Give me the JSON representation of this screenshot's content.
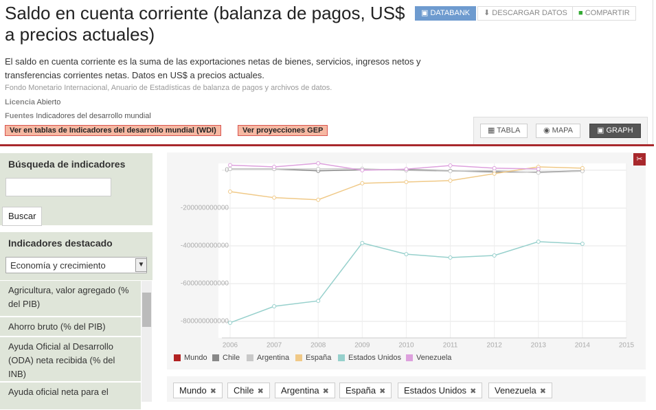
{
  "header": {
    "title": "Saldo en cuenta corriente (balanza de pagos, US$ a precios actuales)",
    "description": "El saldo en cuenta corriente es la suma de las exportaciones netas de bienes, servicios, ingresos netos y transferencias corrientes netas. Datos en US$ a precios actuales.",
    "source": "Fondo Monetario Internacional, Anuario de Estadísticas de balanza de pagos y archivos de datos.",
    "license_label": "Licencia",
    "license": "Abierto",
    "sources_label": "Fuentes",
    "sources": "Indicadores del desarrollo mundial",
    "links": [
      "Ver en tablas de Indicadores del desarrollo mundial (WDI)",
      "Ver proyecciones GEP"
    ]
  },
  "toolbar": [
    "DATABANK",
    "DESCARGAR DATOS",
    "COMPARTIR"
  ],
  "view_tabs": [
    "TABLA",
    "MAPA",
    "GRAPH"
  ],
  "sidebar": {
    "search_title": "Búsqueda de indicadores",
    "search_button": "Buscar",
    "featured_title": "Indicadores destacado",
    "select": "Economía y crecimiento",
    "items": [
      "Agricultura, valor agregado (% del PIB)",
      "Ahorro bruto (% del PIB)",
      "Ayuda Oficial al Desarrollo (ODA) neta recibida (% del INB)",
      "Ayuda oficial neta para el"
    ]
  },
  "chart_data": {
    "type": "line",
    "x": [
      2006,
      2007,
      2008,
      2009,
      2010,
      2011,
      2012,
      2013,
      2014
    ],
    "xlim": [
      2006,
      2015
    ],
    "xticks": [
      2006,
      2007,
      2008,
      2009,
      2010,
      2011,
      2012,
      2013,
      2014,
      2015
    ],
    "ylim": [
      -887000000000,
      36000000000
    ],
    "yticks": [
      0,
      -200000000000,
      -400000000000,
      -600000000000,
      -800000000000
    ],
    "grid": true,
    "series": [
      {
        "name": "Mundo",
        "color": "#b22222",
        "values": [
          null,
          null,
          null,
          null,
          null,
          null,
          null,
          null,
          null
        ]
      },
      {
        "name": "Chile",
        "color": "#888888",
        "values": [
          7000000000,
          7000000000,
          -3000000000,
          2000000000,
          4000000000,
          -3000000000,
          -9000000000,
          -10000000000,
          -3000000000
        ]
      },
      {
        "name": "Argentina",
        "color": "#c8c8c8",
        "values": [
          7000000000,
          7000000000,
          7000000000,
          8000000000,
          -1000000000,
          -5000000000,
          -2000000000,
          -13000000000,
          -5000000000
        ]
      },
      {
        "name": "España",
        "color": "#f0c987",
        "values": [
          -113000000000,
          -145000000000,
          -156000000000,
          -69000000000,
          -62000000000,
          -55000000000,
          -18000000000,
          18000000000,
          11000000000
        ]
      },
      {
        "name": "Estados Unidos",
        "color": "#96d0cc",
        "values": [
          -807000000000,
          -720000000000,
          -691000000000,
          -385000000000,
          -444000000000,
          -462000000000,
          -451000000000,
          -378000000000,
          -389000000000
        ]
      },
      {
        "name": "Venezuela",
        "color": "#dda0dd",
        "values": [
          27000000000,
          18000000000,
          37000000000,
          0,
          6000000000,
          25000000000,
          11000000000,
          7000000000,
          null
        ]
      }
    ]
  },
  "filter_tags": [
    "Mundo",
    "Chile",
    "Argentina",
    "España",
    "Estados Unidos",
    "Venezuela"
  ]
}
